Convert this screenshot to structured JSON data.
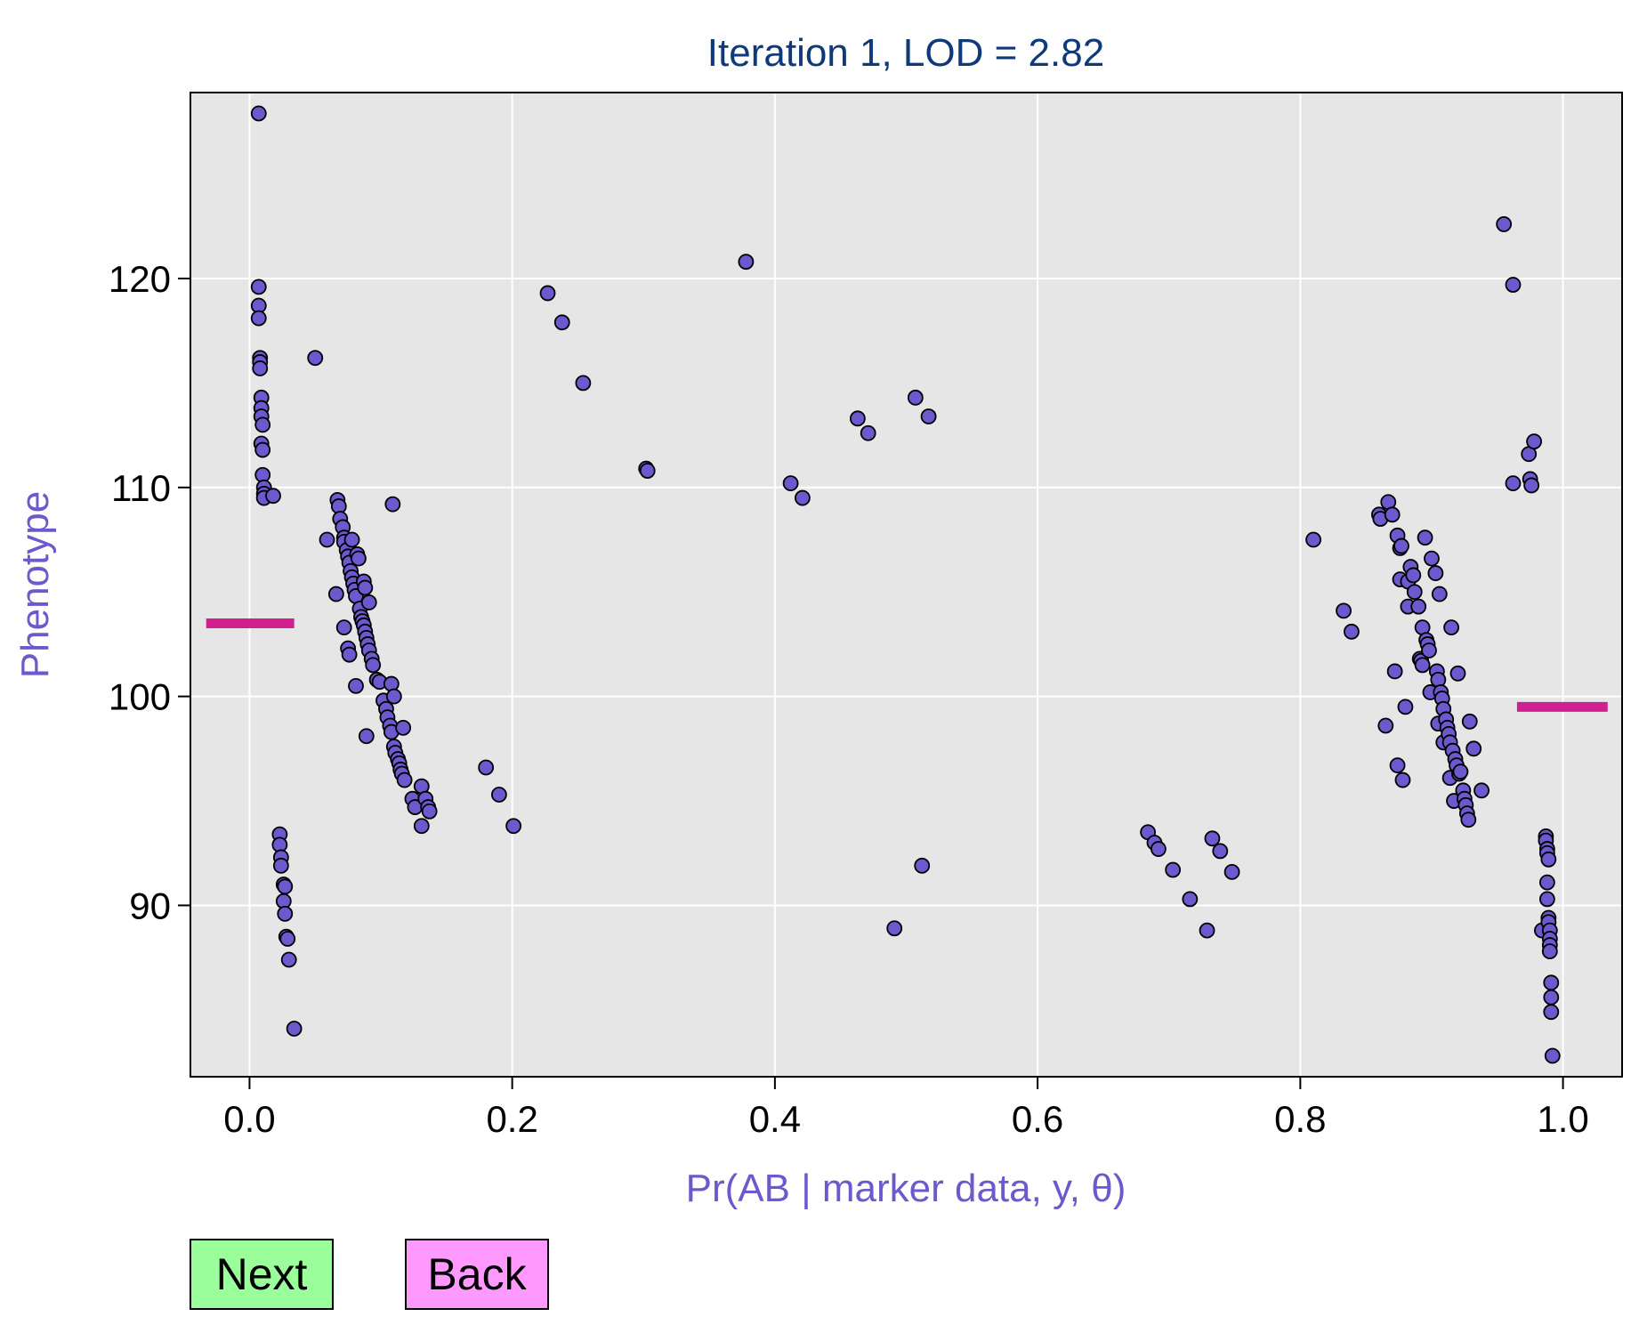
{
  "buttons": {
    "next_label": "Next",
    "back_label": "Back"
  },
  "colors": {
    "panel_bg": "#e6e6e6",
    "grid": "#ffffff",
    "point_fill": "#6a5acd",
    "point_stroke": "#000000",
    "mean_line": "#d02090",
    "title": "#0f3a7a",
    "axis_label": "#6a5acd",
    "next_button": "#9aff9a",
    "back_button": "#ff99ff"
  },
  "chart_data": {
    "type": "scatter",
    "title": "Iteration 1, LOD = 2.82",
    "xlabel": "Pr(AB | marker data, y, θ)",
    "ylabel": "Phenotype",
    "xlim": [
      -0.045,
      1.045
    ],
    "ylim": [
      81.8,
      128.9
    ],
    "xticks": [
      0.0,
      0.2,
      0.4,
      0.6,
      0.8,
      1.0
    ],
    "xtick_labels": [
      "0.0",
      "0.2",
      "0.4",
      "0.6",
      "0.8",
      "1.0"
    ],
    "yticks": [
      90,
      100,
      110,
      120
    ],
    "ytick_labels": [
      "90",
      "100",
      "110",
      "120"
    ],
    "grid": true,
    "group_means": [
      {
        "x_from": -0.033,
        "x_to": 0.034,
        "y": 103.5
      },
      {
        "x_from": 0.965,
        "x_to": 1.034,
        "y": 99.5
      }
    ],
    "points": [
      [
        0.007,
        127.9
      ],
      [
        0.007,
        119.6
      ],
      [
        0.007,
        118.7
      ],
      [
        0.007,
        118.1
      ],
      [
        0.008,
        116.2
      ],
      [
        0.008,
        116.0
      ],
      [
        0.008,
        115.7
      ],
      [
        0.009,
        114.3
      ],
      [
        0.009,
        113.8
      ],
      [
        0.009,
        113.4
      ],
      [
        0.01,
        113.0
      ],
      [
        0.009,
        112.1
      ],
      [
        0.01,
        111.8
      ],
      [
        0.01,
        110.6
      ],
      [
        0.011,
        110.0
      ],
      [
        0.011,
        109.7
      ],
      [
        0.011,
        109.5
      ],
      [
        0.018,
        109.6
      ],
      [
        0.023,
        93.4
      ],
      [
        0.023,
        92.9
      ],
      [
        0.024,
        92.3
      ],
      [
        0.024,
        91.9
      ],
      [
        0.026,
        91.0
      ],
      [
        0.027,
        90.9
      ],
      [
        0.026,
        90.2
      ],
      [
        0.027,
        89.6
      ],
      [
        0.028,
        88.5
      ],
      [
        0.029,
        88.4
      ],
      [
        0.03,
        87.4
      ],
      [
        0.034,
        84.1
      ],
      [
        0.05,
        116.2
      ],
      [
        0.059,
        107.5
      ],
      [
        0.066,
        104.9
      ],
      [
        0.067,
        109.4
      ],
      [
        0.068,
        109.1
      ],
      [
        0.069,
        108.5
      ],
      [
        0.071,
        108.1
      ],
      [
        0.072,
        107.6
      ],
      [
        0.072,
        107.4
      ],
      [
        0.074,
        107.0
      ],
      [
        0.075,
        106.7
      ],
      [
        0.076,
        106.4
      ],
      [
        0.077,
        106.0
      ],
      [
        0.078,
        105.7
      ],
      [
        0.078,
        107.5
      ],
      [
        0.079,
        105.4
      ],
      [
        0.08,
        105.1
      ],
      [
        0.081,
        104.8
      ],
      [
        0.082,
        106.8
      ],
      [
        0.083,
        106.6
      ],
      [
        0.084,
        104.2
      ],
      [
        0.085,
        103.8
      ],
      [
        0.086,
        103.6
      ],
      [
        0.087,
        103.4
      ],
      [
        0.088,
        103.1
      ],
      [
        0.089,
        102.8
      ],
      [
        0.09,
        102.5
      ],
      [
        0.091,
        102.2
      ],
      [
        0.093,
        101.8
      ],
      [
        0.094,
        101.5
      ],
      [
        0.087,
        105.5
      ],
      [
        0.088,
        105.2
      ],
      [
        0.091,
        104.5
      ],
      [
        0.072,
        103.3
      ],
      [
        0.075,
        102.3
      ],
      [
        0.076,
        102.0
      ],
      [
        0.081,
        100.5
      ],
      [
        0.089,
        98.1
      ],
      [
        0.097,
        100.8
      ],
      [
        0.099,
        100.7
      ],
      [
        0.102,
        99.8
      ],
      [
        0.104,
        99.4
      ],
      [
        0.105,
        99.0
      ],
      [
        0.107,
        98.6
      ],
      [
        0.108,
        98.3
      ],
      [
        0.11,
        97.6
      ],
      [
        0.111,
        97.3
      ],
      [
        0.113,
        97.0
      ],
      [
        0.114,
        96.8
      ],
      [
        0.115,
        96.5
      ],
      [
        0.116,
        96.3
      ],
      [
        0.118,
        96.0
      ],
      [
        0.108,
        100.6
      ],
      [
        0.11,
        100.0
      ],
      [
        0.117,
        98.5
      ],
      [
        0.109,
        109.2
      ],
      [
        0.124,
        95.1
      ],
      [
        0.126,
        94.7
      ],
      [
        0.131,
        95.7
      ],
      [
        0.134,
        95.1
      ],
      [
        0.136,
        94.7
      ],
      [
        0.137,
        94.5
      ],
      [
        0.131,
        93.8
      ],
      [
        0.18,
        96.6
      ],
      [
        0.19,
        95.3
      ],
      [
        0.201,
        93.8
      ],
      [
        0.227,
        119.3
      ],
      [
        0.238,
        117.9
      ],
      [
        0.254,
        115.0
      ],
      [
        0.302,
        110.9
      ],
      [
        0.303,
        110.8
      ],
      [
        0.378,
        120.8
      ],
      [
        0.412,
        110.2
      ],
      [
        0.421,
        109.5
      ],
      [
        0.463,
        113.3
      ],
      [
        0.471,
        112.6
      ],
      [
        0.491,
        88.9
      ],
      [
        0.507,
        114.3
      ],
      [
        0.512,
        91.9
      ],
      [
        0.517,
        113.4
      ],
      [
        0.684,
        93.5
      ],
      [
        0.689,
        93.0
      ],
      [
        0.692,
        92.7
      ],
      [
        0.703,
        91.7
      ],
      [
        0.716,
        90.3
      ],
      [
        0.729,
        88.8
      ],
      [
        0.733,
        93.2
      ],
      [
        0.739,
        92.6
      ],
      [
        0.748,
        91.6
      ],
      [
        0.81,
        107.5
      ],
      [
        0.833,
        104.1
      ],
      [
        0.839,
        103.1
      ],
      [
        0.86,
        108.7
      ],
      [
        0.861,
        108.5
      ],
      [
        0.865,
        98.6
      ],
      [
        0.867,
        109.3
      ],
      [
        0.87,
        108.7
      ],
      [
        0.872,
        101.2
      ],
      [
        0.874,
        107.7
      ],
      [
        0.874,
        96.7
      ],
      [
        0.876,
        107.1
      ],
      [
        0.877,
        107.2
      ],
      [
        0.876,
        105.6
      ],
      [
        0.878,
        96.0
      ],
      [
        0.88,
        99.5
      ],
      [
        0.882,
        105.5
      ],
      [
        0.882,
        104.3
      ],
      [
        0.884,
        106.2
      ],
      [
        0.886,
        105.8
      ],
      [
        0.887,
        105.0
      ],
      [
        0.89,
        104.3
      ],
      [
        0.891,
        101.8
      ],
      [
        0.892,
        101.7
      ],
      [
        0.893,
        101.5
      ],
      [
        0.893,
        103.3
      ],
      [
        0.895,
        107.6
      ],
      [
        0.896,
        102.7
      ],
      [
        0.897,
        102.5
      ],
      [
        0.898,
        102.2
      ],
      [
        0.899,
        100.2
      ],
      [
        0.9,
        106.6
      ],
      [
        0.903,
        105.9
      ],
      [
        0.904,
        101.2
      ],
      [
        0.905,
        98.7
      ],
      [
        0.905,
        100.8
      ],
      [
        0.906,
        104.9
      ],
      [
        0.907,
        100.2
      ],
      [
        0.908,
        99.9
      ],
      [
        0.909,
        99.4
      ],
      [
        0.909,
        97.8
      ],
      [
        0.911,
        98.9
      ],
      [
        0.912,
        98.5
      ],
      [
        0.913,
        98.2
      ],
      [
        0.914,
        97.8
      ],
      [
        0.914,
        96.1
      ],
      [
        0.915,
        103.3
      ],
      [
        0.916,
        97.4
      ],
      [
        0.917,
        95.0
      ],
      [
        0.918,
        97.0
      ],
      [
        0.919,
        96.7
      ],
      [
        0.92,
        101.1
      ],
      [
        0.921,
        96.3
      ],
      [
        0.922,
        96.4
      ],
      [
        0.924,
        95.5
      ],
      [
        0.925,
        95.1
      ],
      [
        0.926,
        94.8
      ],
      [
        0.927,
        94.4
      ],
      [
        0.928,
        94.1
      ],
      [
        0.929,
        98.8
      ],
      [
        0.932,
        97.5
      ],
      [
        0.938,
        95.5
      ],
      [
        0.955,
        122.6
      ],
      [
        0.962,
        119.7
      ],
      [
        0.962,
        110.2
      ],
      [
        0.974,
        111.6
      ],
      [
        0.975,
        110.4
      ],
      [
        0.976,
        110.1
      ],
      [
        0.978,
        112.2
      ],
      [
        0.984,
        88.8
      ],
      [
        0.987,
        93.3
      ],
      [
        0.987,
        93.1
      ],
      [
        0.988,
        92.7
      ],
      [
        0.988,
        92.5
      ],
      [
        0.989,
        92.2
      ],
      [
        0.988,
        91.1
      ],
      [
        0.988,
        90.3
      ],
      [
        0.989,
        89.4
      ],
      [
        0.989,
        89.2
      ],
      [
        0.99,
        88.8
      ],
      [
        0.99,
        88.4
      ],
      [
        0.99,
        88.1
      ],
      [
        0.99,
        87.8
      ],
      [
        0.991,
        86.3
      ],
      [
        0.991,
        85.6
      ],
      [
        0.991,
        84.9
      ],
      [
        0.992,
        82.8
      ]
    ]
  }
}
